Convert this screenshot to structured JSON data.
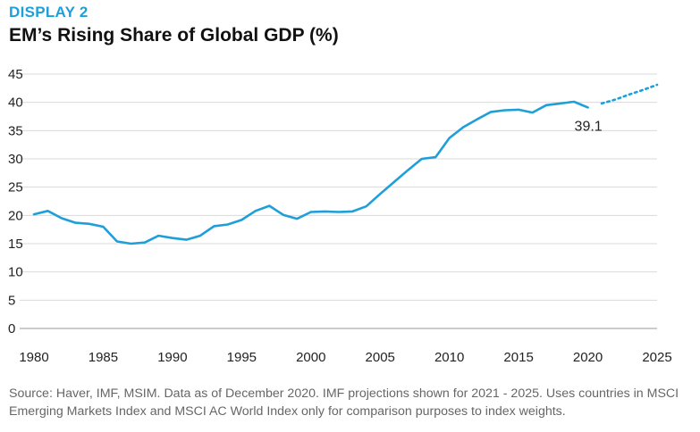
{
  "header": {
    "kicker": "DISPLAY 2",
    "title": "EM’s Rising Share of Global GDP (%)"
  },
  "source_note": "Source: Haver, IMF, MSIM. Data as of December 2020. IMF projections shown for 2021 - 2025. Uses countries in MSCI Emerging Markets Index and MSCI AC World Index only for comparison purposes to index weights.",
  "colors": {
    "series": "#1f9fd9",
    "gridline": "#d9d9d9",
    "kicker": "#1f9fd9"
  },
  "chart_data": {
    "type": "line",
    "title": "EM’s Rising Share of Global GDP (%)",
    "xlabel": "",
    "ylabel": "",
    "xlim": [
      1980,
      2025
    ],
    "ylim": [
      0,
      45
    ],
    "x_ticks": [
      "1980",
      "1985",
      "1990",
      "1995",
      "2000",
      "2005",
      "2010",
      "2015",
      "2020",
      "2025"
    ],
    "y_ticks": [
      "0",
      "5",
      "10",
      "15",
      "20",
      "25",
      "30",
      "35",
      "40",
      "45"
    ],
    "grid": "horizontal",
    "legend": "none",
    "series": [
      {
        "style": "solid",
        "x": [
          1980,
          1981,
          1982,
          1983,
          1984,
          1985,
          1986,
          1987,
          1988,
          1989,
          1990,
          1991,
          1992,
          1993,
          1994,
          1995,
          1996,
          1997,
          1998,
          1999,
          2000,
          2001,
          2002,
          2003,
          2004,
          2005,
          2006,
          2007,
          2008,
          2009,
          2010,
          2011,
          2012,
          2013,
          2014,
          2015,
          2016,
          2017,
          2018,
          2019,
          2020
        ],
        "y": [
          20.2,
          20.8,
          19.5,
          18.7,
          18.5,
          18.0,
          15.4,
          15.0,
          15.2,
          16.4,
          16.0,
          15.7,
          16.4,
          18.1,
          18.4,
          19.2,
          20.8,
          21.7,
          20.1,
          19.4,
          20.6,
          20.7,
          20.6,
          20.7,
          21.6,
          23.8,
          25.9,
          28.0,
          30.0,
          30.3,
          33.7,
          35.6,
          37.0,
          38.3,
          38.6,
          38.7,
          38.2,
          39.5,
          39.8,
          40.1,
          39.1
        ]
      },
      {
        "style": "dotted",
        "x": [
          2021,
          2022,
          2023,
          2024,
          2025
        ],
        "y": [
          39.8,
          40.5,
          41.4,
          42.2,
          43.1
        ]
      }
    ],
    "annotations": [
      {
        "x": 2020,
        "y": 39.1,
        "text": "39.1"
      }
    ]
  }
}
